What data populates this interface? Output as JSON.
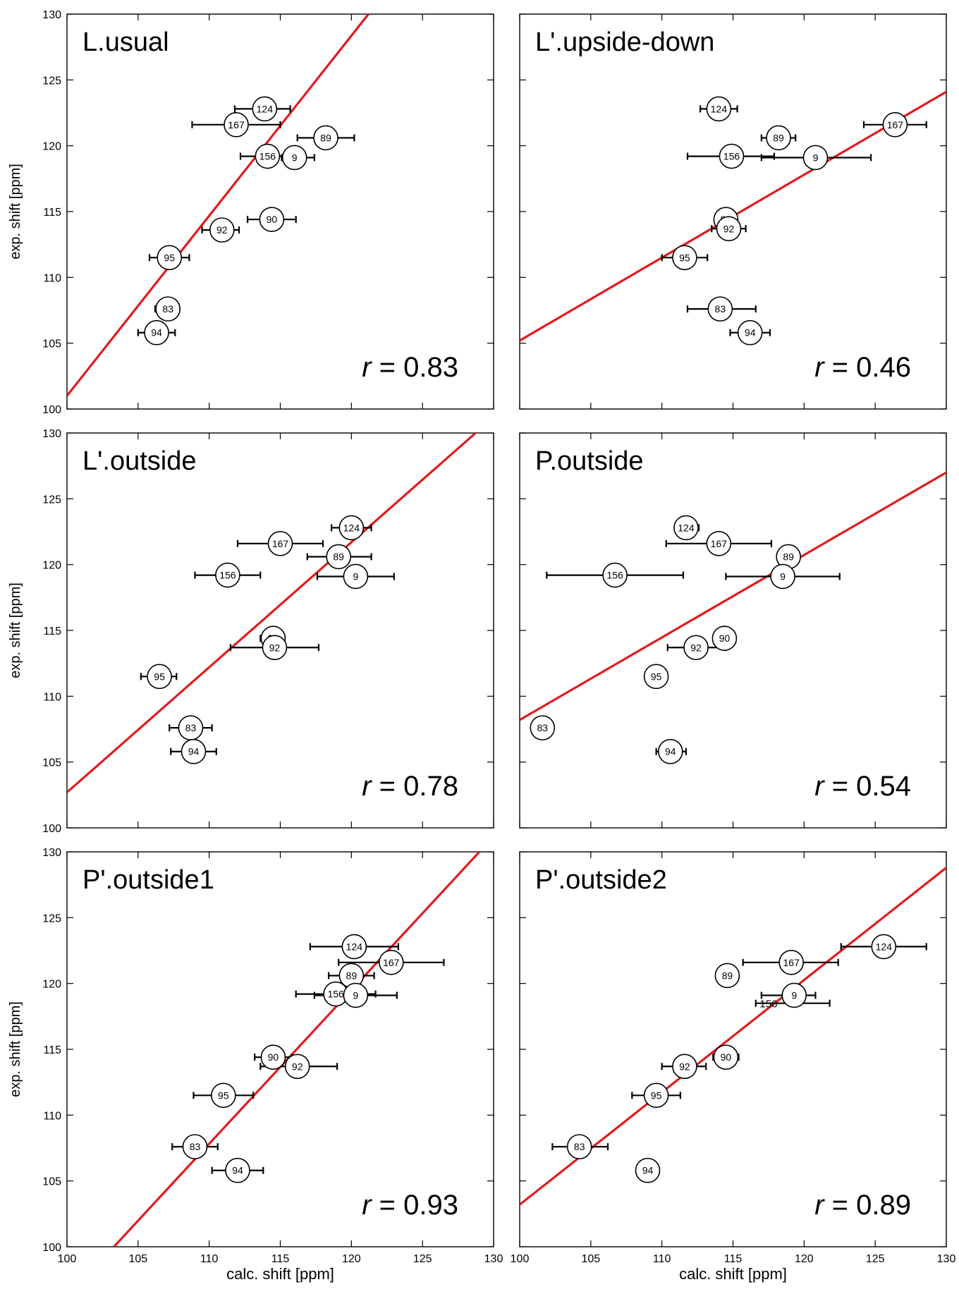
{
  "axis_labels": {
    "x": "calc. shift [ppm]",
    "y": "exp. shift [ppm]"
  },
  "r_prefix": "r",
  "chart_data": [
    {
      "type": "scatter",
      "title": "L.usual",
      "r_value": "= 0.83",
      "xlim": [
        100,
        130
      ],
      "ylim": [
        100,
        130
      ],
      "xticks": [
        100,
        105,
        110,
        115,
        120,
        125,
        130
      ],
      "yticks": [
        100,
        105,
        110,
        115,
        120,
        125,
        130
      ],
      "fit_line": [
        [
          100,
          101.0
        ],
        [
          121.2,
          130
        ]
      ],
      "points": [
        {
          "label": "124",
          "x": 113.9,
          "y": 122.8,
          "xerr": [
            111.8,
            115.7
          ]
        },
        {
          "label": "167",
          "x": 111.9,
          "y": 121.6,
          "xerr": [
            108.8,
            115.0
          ]
        },
        {
          "label": "89",
          "x": 118.2,
          "y": 120.6,
          "xerr": [
            116.2,
            120.2
          ]
        },
        {
          "label": "156",
          "x": 114.1,
          "y": 119.2,
          "xerr": [
            112.2,
            116.1
          ]
        },
        {
          "label": "9",
          "x": 116.0,
          "y": 119.1,
          "xerr": [
            115.1,
            117.4
          ]
        },
        {
          "label": "90",
          "x": 114.4,
          "y": 114.4,
          "xerr": [
            112.7,
            116.1
          ]
        },
        {
          "label": "92",
          "x": 110.9,
          "y": 113.6,
          "xerr": [
            109.5,
            112.1
          ]
        },
        {
          "label": "95",
          "x": 107.2,
          "y": 111.5,
          "xerr": [
            105.8,
            108.6
          ]
        },
        {
          "label": "83",
          "x": 107.1,
          "y": 107.6,
          "xerr": [
            106.2,
            107.9
          ]
        },
        {
          "label": "94",
          "x": 106.3,
          "y": 105.8,
          "xerr": [
            105.0,
            107.6
          ]
        }
      ]
    },
    {
      "type": "scatter",
      "title": "L'.upside-down",
      "r_value": "= 0.46",
      "xlim": [
        100,
        130
      ],
      "ylim": [
        100,
        130
      ],
      "xticks": [
        100,
        105,
        110,
        115,
        120,
        125,
        130
      ],
      "yticks": [
        100,
        105,
        110,
        115,
        120,
        125,
        130
      ],
      "fit_line": [
        [
          100,
          105.2
        ],
        [
          130,
          124.1
        ]
      ],
      "points": [
        {
          "label": "124",
          "x": 114.0,
          "y": 122.8,
          "xerr": [
            112.7,
            115.3
          ]
        },
        {
          "label": "167",
          "x": 126.4,
          "y": 121.6,
          "xerr": [
            124.2,
            128.6
          ]
        },
        {
          "label": "89",
          "x": 118.2,
          "y": 120.6,
          "xerr": [
            117.0,
            119.4
          ]
        },
        {
          "label": "156",
          "x": 114.9,
          "y": 119.2,
          "xerr": [
            111.8,
            117.9
          ]
        },
        {
          "label": "9",
          "x": 120.8,
          "y": 119.1,
          "xerr": [
            117.0,
            124.7
          ]
        },
        {
          "label": "90",
          "x": 114.5,
          "y": 114.4,
          "xerr": null
        },
        {
          "label": "92",
          "x": 114.7,
          "y": 113.7,
          "xerr": [
            113.5,
            115.9
          ]
        },
        {
          "label": "95",
          "x": 111.6,
          "y": 111.5,
          "xerr": [
            110.0,
            113.2
          ]
        },
        {
          "label": "83",
          "x": 114.1,
          "y": 107.6,
          "xerr": [
            111.8,
            116.6
          ]
        },
        {
          "label": "94",
          "x": 116.2,
          "y": 105.8,
          "xerr": [
            114.8,
            117.6
          ]
        }
      ]
    },
    {
      "type": "scatter",
      "title": "L'.outside",
      "r_value": "= 0.78",
      "xlim": [
        100,
        130
      ],
      "ylim": [
        100,
        130
      ],
      "xticks": [
        100,
        105,
        110,
        115,
        120,
        125,
        130
      ],
      "yticks": [
        100,
        105,
        110,
        115,
        120,
        125,
        130
      ],
      "fit_line": [
        [
          100,
          102.7
        ],
        [
          130,
          131.2
        ]
      ],
      "points": [
        {
          "label": "124",
          "x": 120.0,
          "y": 122.8,
          "xerr": [
            118.6,
            121.4
          ]
        },
        {
          "label": "167",
          "x": 115.0,
          "y": 121.6,
          "xerr": [
            112.0,
            118.0
          ]
        },
        {
          "label": "89",
          "x": 119.1,
          "y": 120.6,
          "xerr": [
            116.9,
            121.4
          ]
        },
        {
          "label": "156",
          "x": 111.3,
          "y": 119.2,
          "xerr": [
            109.0,
            113.6
          ]
        },
        {
          "label": "9",
          "x": 120.3,
          "y": 119.1,
          "xerr": [
            117.6,
            123.0
          ]
        },
        {
          "label": "90",
          "x": 114.5,
          "y": 114.4,
          "xerr": [
            113.6,
            115.3
          ]
        },
        {
          "label": "92",
          "x": 114.6,
          "y": 113.7,
          "xerr": [
            111.5,
            117.7
          ]
        },
        {
          "label": "95",
          "x": 106.5,
          "y": 111.5,
          "xerr": [
            105.2,
            107.7
          ]
        },
        {
          "label": "83",
          "x": 108.7,
          "y": 107.6,
          "xerr": [
            107.2,
            110.2
          ]
        },
        {
          "label": "94",
          "x": 108.9,
          "y": 105.8,
          "xerr": [
            107.3,
            110.5
          ]
        }
      ]
    },
    {
      "type": "scatter",
      "title": "P.outside",
      "r_value": "= 0.54",
      "xlim": [
        100,
        130
      ],
      "ylim": [
        100,
        130
      ],
      "xticks": [
        100,
        105,
        110,
        115,
        120,
        125,
        130
      ],
      "yticks": [
        100,
        105,
        110,
        115,
        120,
        125,
        130
      ],
      "fit_line": [
        [
          100,
          108.2
        ],
        [
          130,
          127.0
        ]
      ],
      "points": [
        {
          "label": "124",
          "x": 111.7,
          "y": 122.8,
          "xerr": [
            111.1,
            112.6
          ]
        },
        {
          "label": "167",
          "x": 114.0,
          "y": 121.6,
          "xerr": [
            110.3,
            117.7
          ]
        },
        {
          "label": "89",
          "x": 118.9,
          "y": 120.6,
          "xerr": null
        },
        {
          "label": "156",
          "x": 106.7,
          "y": 119.2,
          "xerr": [
            101.9,
            111.5
          ]
        },
        {
          "label": "9",
          "x": 118.5,
          "y": 119.1,
          "xerr": [
            114.5,
            122.5
          ]
        },
        {
          "label": "90",
          "x": 114.4,
          "y": 114.4,
          "xerr": [
            113.7,
            115.1
          ]
        },
        {
          "label": "92",
          "x": 112.4,
          "y": 113.7,
          "xerr": [
            110.4,
            114.5
          ]
        },
        {
          "label": "95",
          "x": 109.6,
          "y": 111.5,
          "xerr": [
            109.0,
            110.2
          ]
        },
        {
          "label": "83",
          "x": 101.6,
          "y": 107.6,
          "xerr": null
        },
        {
          "label": "94",
          "x": 110.6,
          "y": 105.8,
          "xerr": [
            109.6,
            111.7
          ]
        }
      ]
    },
    {
      "type": "scatter",
      "title": "P'.outside1",
      "r_value": "= 0.93",
      "xlim": [
        100,
        130
      ],
      "ylim": [
        100,
        130
      ],
      "xticks": [
        100,
        105,
        110,
        115,
        120,
        125,
        130
      ],
      "yticks": [
        100,
        105,
        110,
        115,
        120,
        125,
        130
      ],
      "fit_line": [
        [
          103.3,
          100
        ],
        [
          129.0,
          130
        ]
      ],
      "points": [
        {
          "label": "124",
          "x": 120.2,
          "y": 122.8,
          "xerr": [
            117.1,
            123.3
          ]
        },
        {
          "label": "167",
          "x": 122.8,
          "y": 121.6,
          "xerr": [
            119.1,
            126.5
          ]
        },
        {
          "label": "89",
          "x": 120.0,
          "y": 120.6,
          "xerr": [
            118.4,
            121.6
          ]
        },
        {
          "label": "156",
          "x": 118.9,
          "y": 119.2,
          "xerr": [
            116.1,
            121.7
          ]
        },
        {
          "label": "9",
          "x": 120.3,
          "y": 119.1,
          "xerr": [
            117.4,
            123.2
          ]
        },
        {
          "label": "90",
          "x": 114.5,
          "y": 114.4,
          "xerr": [
            113.2,
            115.8
          ]
        },
        {
          "label": "92",
          "x": 116.2,
          "y": 113.7,
          "xerr": [
            113.6,
            119.0
          ]
        },
        {
          "label": "95",
          "x": 111.0,
          "y": 111.5,
          "xerr": [
            108.9,
            113.1
          ]
        },
        {
          "label": "83",
          "x": 109.0,
          "y": 107.6,
          "xerr": [
            107.4,
            110.6
          ]
        },
        {
          "label": "94",
          "x": 112.0,
          "y": 105.8,
          "xerr": [
            110.2,
            113.8
          ]
        }
      ]
    },
    {
      "type": "scatter",
      "title": "P'.outside2",
      "r_value": "= 0.89",
      "xlim": [
        100,
        130
      ],
      "ylim": [
        100,
        130
      ],
      "xticks": [
        100,
        105,
        110,
        115,
        120,
        125,
        130
      ],
      "yticks": [
        100,
        105,
        110,
        115,
        120,
        125,
        130
      ],
      "fit_line": [
        [
          100,
          103.2
        ],
        [
          130,
          128.8
        ]
      ],
      "points": [
        {
          "label": "124",
          "x": 125.6,
          "y": 122.8,
          "xerr": [
            122.6,
            128.6
          ]
        },
        {
          "label": "167",
          "x": 119.1,
          "y": 121.6,
          "xerr": [
            115.7,
            122.4
          ]
        },
        {
          "label": "89",
          "x": 114.6,
          "y": 120.6,
          "xerr": [
            114.0,
            115.2
          ]
        },
        {
          "label": "156",
          "x": 117.5,
          "y": 118.5,
          "xerr": [
            116.6,
            121.8
          ],
          "no_marker": true
        },
        {
          "label": "9",
          "x": 119.3,
          "y": 119.1,
          "xerr": [
            117.0,
            120.8
          ]
        },
        {
          "label": "90",
          "x": 114.5,
          "y": 114.4,
          "xerr": [
            113.6,
            115.4
          ]
        },
        {
          "label": "92",
          "x": 111.6,
          "y": 113.7,
          "xerr": [
            110.0,
            113.1
          ]
        },
        {
          "label": "95",
          "x": 109.6,
          "y": 111.5,
          "xerr": [
            107.9,
            111.3
          ]
        },
        {
          "label": "83",
          "x": 104.2,
          "y": 107.6,
          "xerr": [
            102.3,
            106.2
          ]
        },
        {
          "label": "94",
          "x": 109.0,
          "y": 105.8,
          "xerr": [
            108.3,
            109.8
          ]
        }
      ]
    }
  ],
  "colors": {
    "fit_line": "#e31a1c",
    "axes": "#000000",
    "marker_fill": "#ffffff"
  }
}
